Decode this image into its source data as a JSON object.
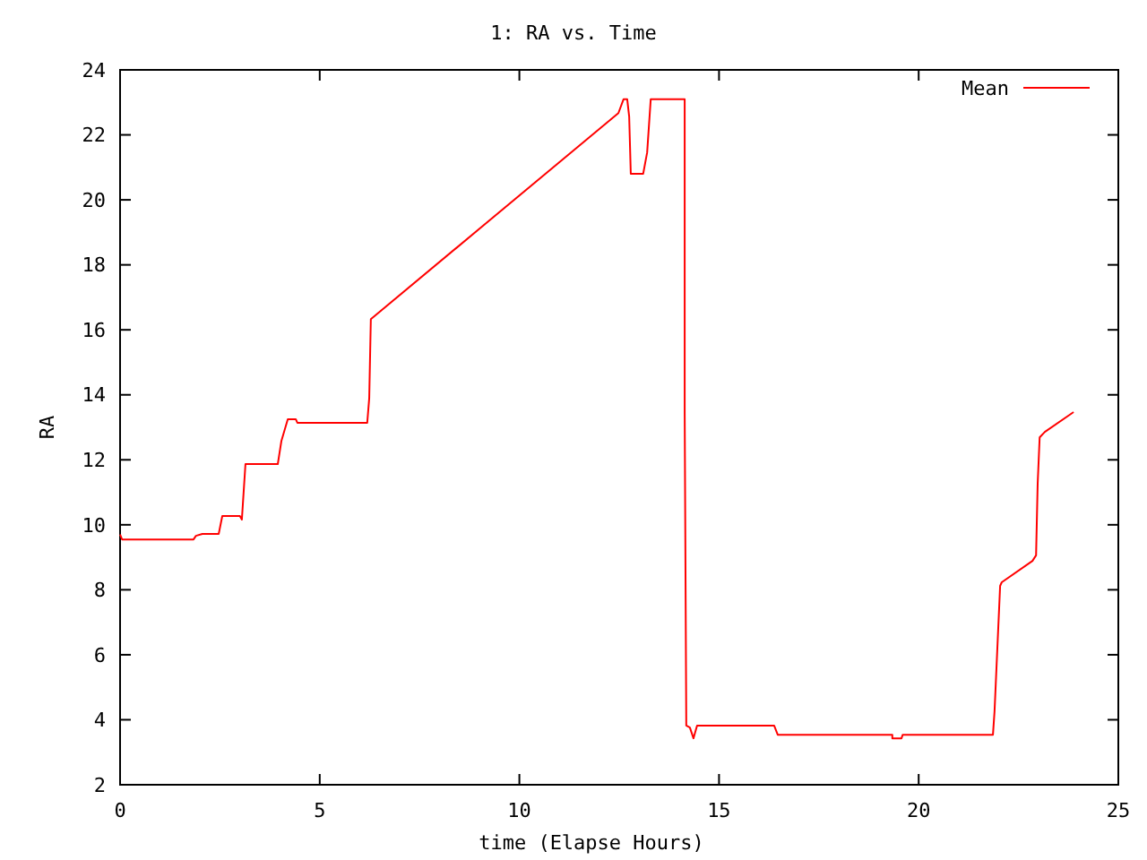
{
  "chart_data": {
    "type": "line",
    "title": "1: RA vs. Time",
    "xlabel": "time (Elapse Hours)",
    "ylabel": "RA",
    "xlim": [
      0,
      25
    ],
    "ylim": [
      2,
      24
    ],
    "xticks": [
      0,
      5,
      10,
      15,
      20,
      25
    ],
    "yticks": [
      2,
      4,
      6,
      8,
      10,
      12,
      14,
      16,
      18,
      20,
      22,
      24
    ],
    "grid": false,
    "legend": "top right",
    "marker": "none",
    "line_style": "solid",
    "series": [
      {
        "name": "Mean",
        "color": "#ff0000",
        "x": [
          0,
          0.05,
          1.84,
          1.9,
          2.06,
          2.47,
          2.56,
          3.0,
          3.05,
          3.14,
          3.95,
          4.04,
          4.2,
          4.4,
          4.44,
          6.19,
          6.24,
          6.28,
          12.48,
          12.61,
          12.7,
          12.75,
          12.79,
          13.1,
          13.2,
          13.29,
          14.14,
          14.14,
          14.18,
          14.27,
          14.36,
          14.45,
          16.38,
          16.47,
          19.34,
          19.34,
          19.57,
          19.6,
          21.86,
          21.9,
          22.04,
          22.08,
          22.85,
          22.94,
          22.98,
          23.03,
          23.16,
          23.88
        ],
        "values": [
          9.7,
          9.55,
          9.55,
          9.66,
          9.72,
          9.72,
          10.27,
          10.27,
          10.16,
          11.87,
          11.87,
          12.58,
          13.25,
          13.25,
          13.14,
          13.14,
          13.9,
          16.33,
          22.67,
          23.1,
          23.1,
          22.56,
          20.8,
          20.8,
          21.46,
          23.1,
          23.1,
          13.47,
          3.82,
          3.76,
          3.43,
          3.82,
          3.82,
          3.54,
          3.54,
          3.43,
          3.43,
          3.54,
          3.54,
          4.26,
          8.12,
          8.23,
          8.89,
          9.06,
          11.26,
          12.69,
          12.86,
          13.47
        ]
      }
    ]
  }
}
